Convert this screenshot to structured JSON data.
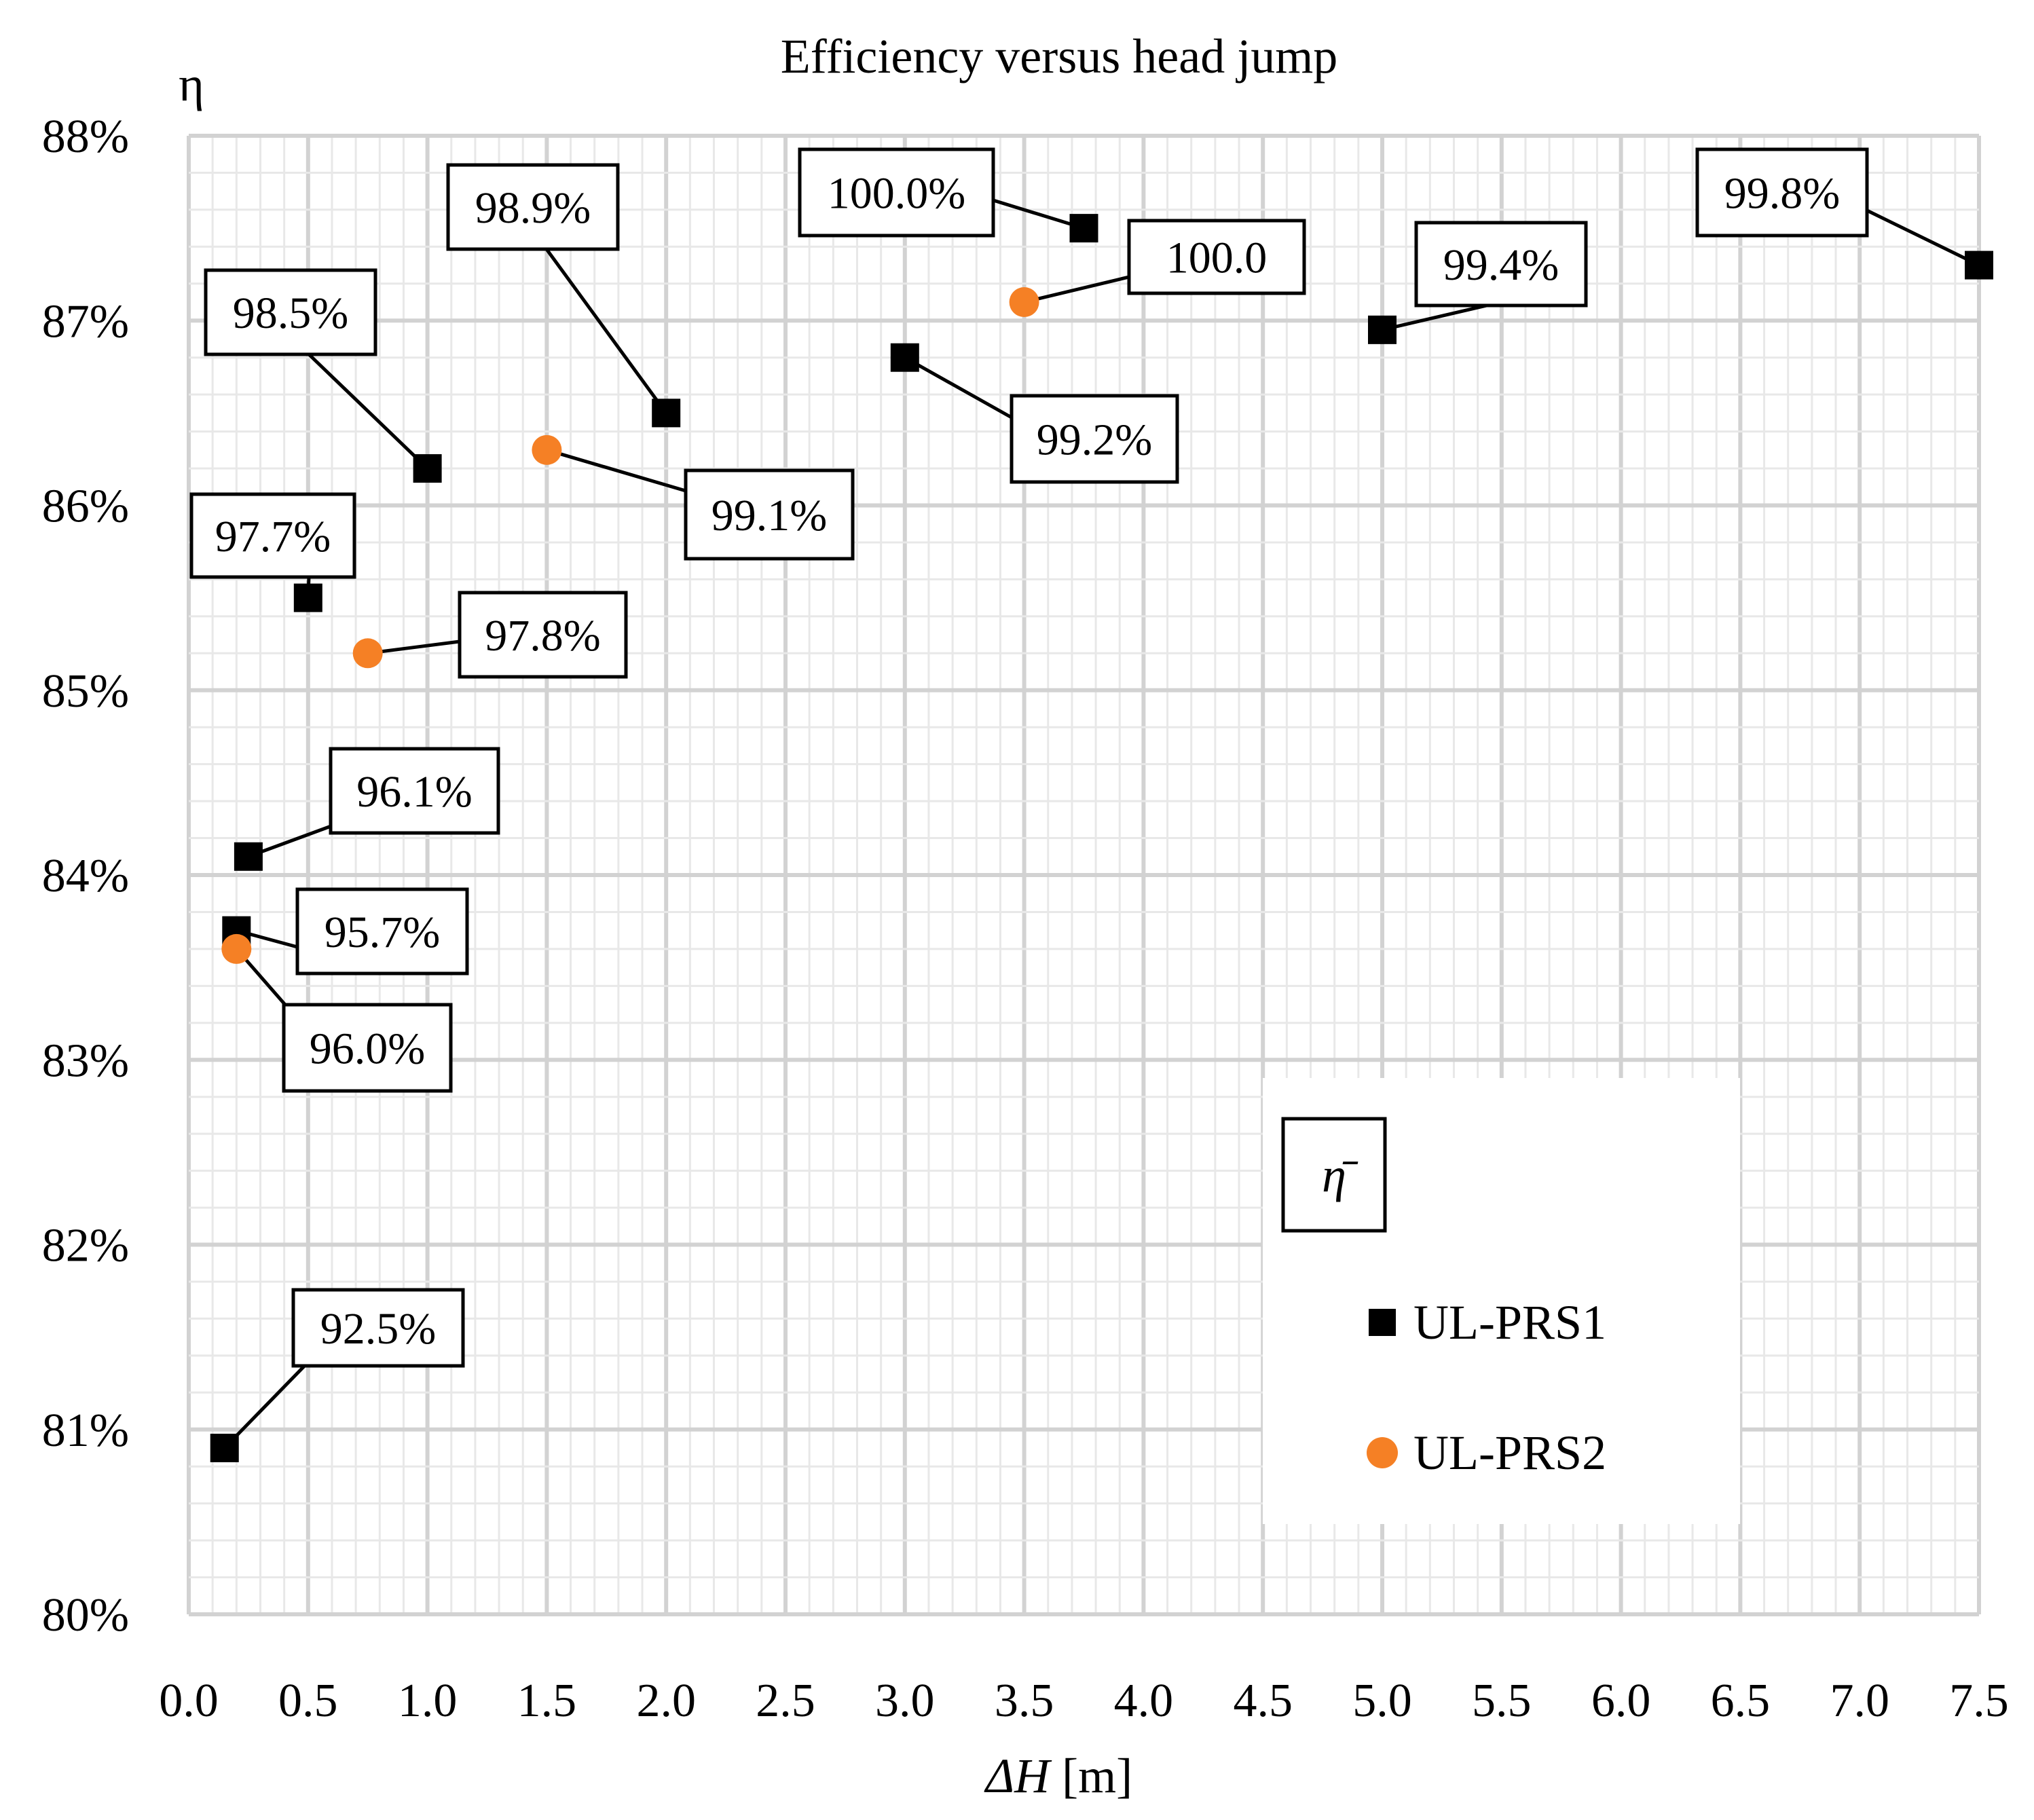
{
  "chart_data": {
    "type": "scatter",
    "title": "Efficiency versus head jump",
    "xlabel_prefix": "ΔH",
    "xlabel_suffix": " [m]",
    "ylabel": "η",
    "xlim": [
      0,
      7.5
    ],
    "ylim": [
      80,
      88
    ],
    "x_ticks": [
      "0.0",
      "0.5",
      "1.0",
      "1.5",
      "2.0",
      "2.5",
      "3.0",
      "3.5",
      "4.0",
      "4.5",
      "5.0",
      "5.5",
      "6.0",
      "6.5",
      "7.0",
      "7.5"
    ],
    "y_ticks": [
      "80%",
      "81%",
      "82%",
      "83%",
      "84%",
      "85%",
      "86%",
      "87%",
      "88%"
    ],
    "grid": true,
    "legend": {
      "title": "η̄",
      "position": "bottom-right"
    },
    "series": [
      {
        "name": "UL-PRS1",
        "marker": "square",
        "color": "#000000",
        "points": [
          {
            "x": 0.15,
            "y": 80.9,
            "label": "92.5%"
          },
          {
            "x": 0.2,
            "y": 83.7,
            "label": "95.7%"
          },
          {
            "x": 0.25,
            "y": 84.1,
            "label": "96.1%"
          },
          {
            "x": 0.5,
            "y": 85.5,
            "label": "97.7%"
          },
          {
            "x": 1.0,
            "y": 86.2,
            "label": "98.5%"
          },
          {
            "x": 2.0,
            "y": 86.5,
            "label": "98.9%"
          },
          {
            "x": 3.0,
            "y": 86.8,
            "label": "99.2%"
          },
          {
            "x": 3.75,
            "y": 87.5,
            "label": "100.0%"
          },
          {
            "x": 5.0,
            "y": 86.95,
            "label": "99.4%"
          },
          {
            "x": 7.5,
            "y": 87.3,
            "label": "99.8%"
          }
        ]
      },
      {
        "name": "UL-PRS2",
        "marker": "circle",
        "color": "#f58025",
        "points": [
          {
            "x": 0.2,
            "y": 83.6,
            "label": "96.0%"
          },
          {
            "x": 0.75,
            "y": 85.2,
            "label": "97.8%"
          },
          {
            "x": 1.5,
            "y": 86.3,
            "label": "99.1%"
          },
          {
            "x": 3.5,
            "y": 87.1,
            "label": "100.0"
          }
        ]
      }
    ]
  }
}
